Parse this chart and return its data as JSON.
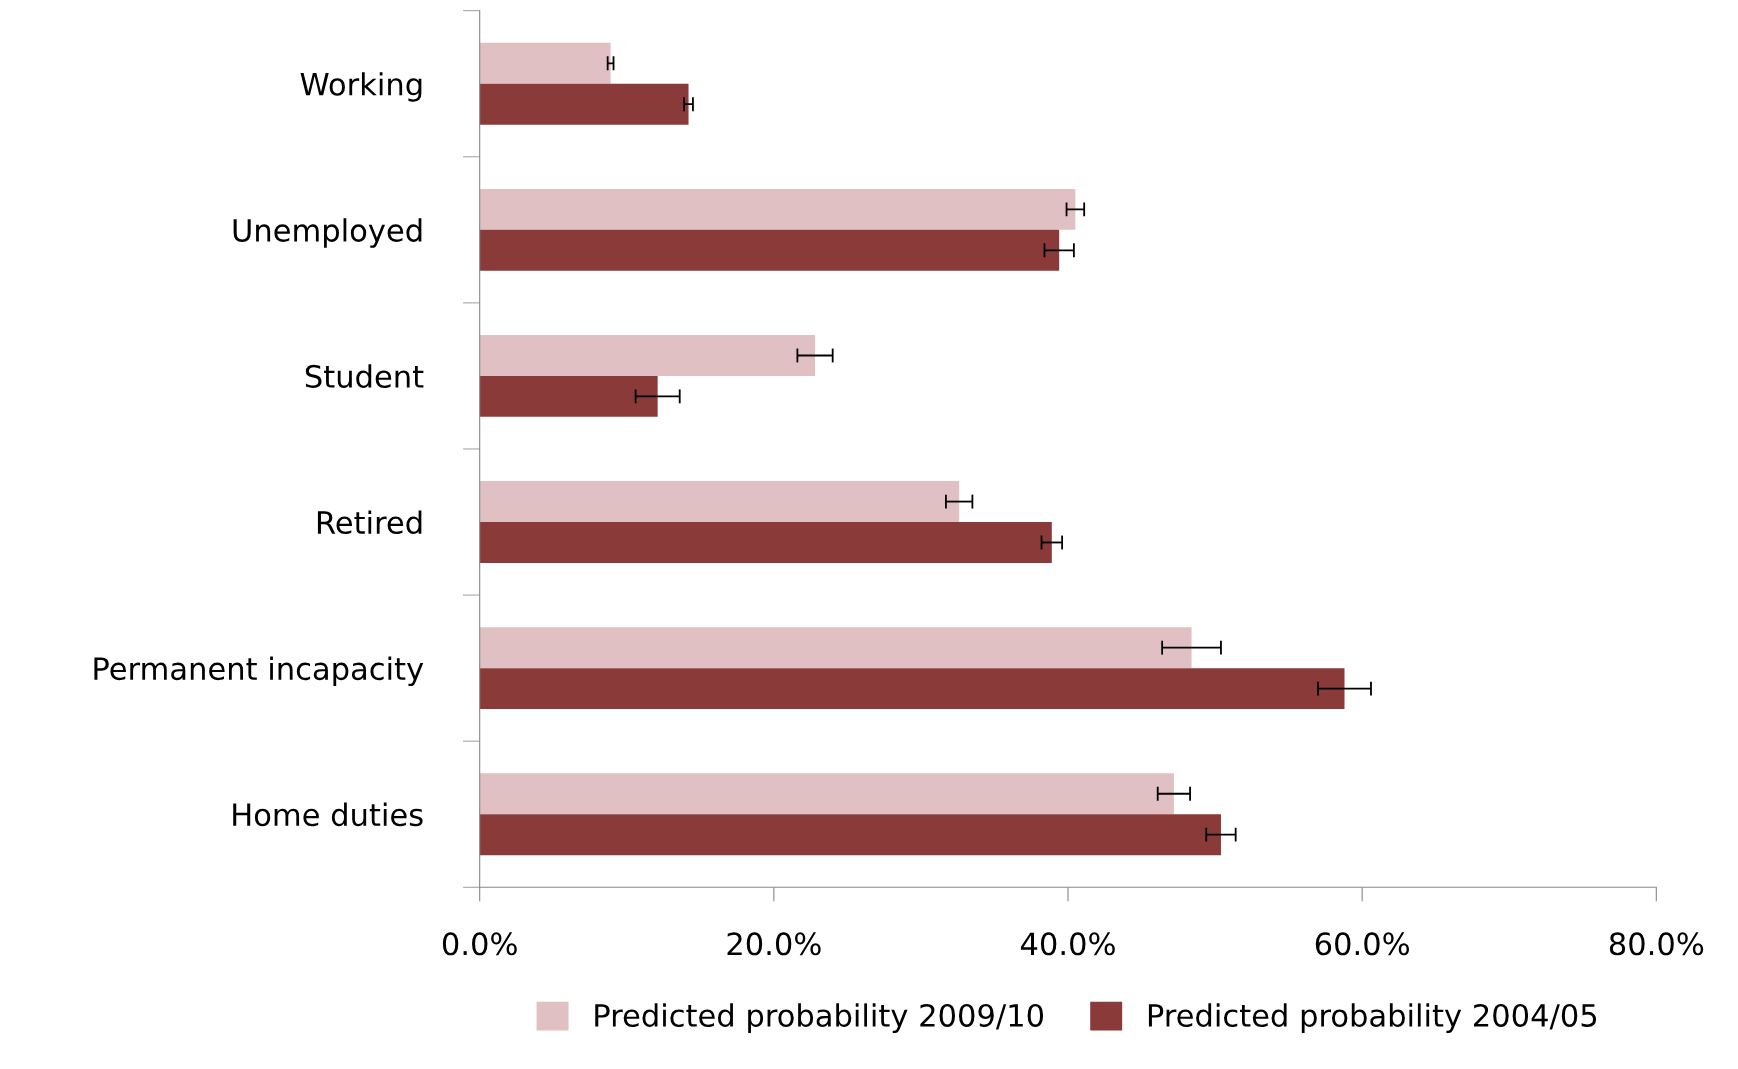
{
  "chart_data": {
    "type": "bar",
    "orientation": "horizontal",
    "categories": [
      "Working",
      "Unemployed",
      "Student",
      "Retired",
      "Permanent incapacity",
      "Home duties"
    ],
    "series": [
      {
        "name": "Predicted probability 2009/10",
        "color": "#e0c0c2",
        "values": [
          8.9,
          40.5,
          22.8,
          32.6,
          48.4,
          47.2
        ],
        "errors": [
          0.2,
          0.6,
          1.2,
          0.9,
          2.0,
          1.1
        ]
      },
      {
        "name": "Predicted probability 2004/05",
        "color": "#8b3a3a",
        "values": [
          14.2,
          39.4,
          12.1,
          38.9,
          58.8,
          50.4
        ],
        "errors": [
          0.3,
          1.0,
          1.5,
          0.7,
          1.8,
          1.0
        ]
      }
    ],
    "xlim": [
      0,
      80
    ],
    "xticks": [
      {
        "value": 0,
        "label": "0.0%"
      },
      {
        "value": 20,
        "label": "20.0%"
      },
      {
        "value": 40,
        "label": "40.0%"
      },
      {
        "value": 60,
        "label": "60.0%"
      },
      {
        "value": 80,
        "label": "80.0%"
      }
    ],
    "grid": false,
    "legend": "bottom"
  }
}
